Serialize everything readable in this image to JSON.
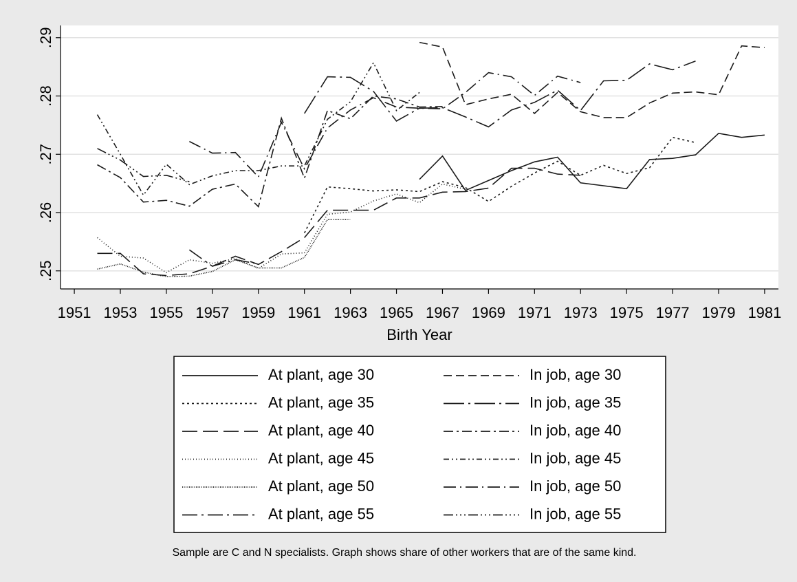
{
  "chart_data": {
    "type": "line",
    "x_label": "Birth Year",
    "note": "Sample are C and N specialists. Graph shows share of other workers that are of the same kind.",
    "x": [
      1952,
      1953,
      1954,
      1955,
      1956,
      1957,
      1958,
      1959,
      1960,
      1961,
      1962,
      1963,
      1964,
      1965,
      1966,
      1967,
      1968,
      1969,
      1970,
      1971,
      1972,
      1973,
      1974,
      1975,
      1976,
      1977,
      1978,
      1979,
      1980,
      1981
    ],
    "xlim": [
      1950.4,
      1981.6
    ],
    "xticks": [
      1951,
      1953,
      1955,
      1957,
      1959,
      1961,
      1963,
      1965,
      1967,
      1969,
      1971,
      1973,
      1975,
      1977,
      1979,
      1981
    ],
    "ylim": [
      0.2469,
      0.2921
    ],
    "yticks": [
      {
        "value": 0.25,
        "label": ".25"
      },
      {
        "value": 0.26,
        "label": ".26"
      },
      {
        "value": 0.27,
        "label": ".27"
      },
      {
        "value": 0.28,
        "label": ".28"
      },
      {
        "value": 0.29,
        "label": ".29"
      }
    ],
    "grid": true,
    "series": [
      {
        "name": "At plant, age 30",
        "color": "#1a1a1a",
        "dash": "none",
        "values": [
          null,
          null,
          null,
          null,
          null,
          null,
          null,
          null,
          null,
          null,
          null,
          null,
          null,
          null,
          0.2657,
          0.2697,
          0.2638,
          0.2655,
          0.2672,
          0.2687,
          0.2695,
          0.2651,
          0.2646,
          0.2641,
          0.2691,
          0.2693,
          0.2699,
          0.2736,
          0.2729,
          0.2733
        ]
      },
      {
        "name": "At plant, age 35",
        "color": "#1a1a1a",
        "dash": "3,4",
        "values": [
          null,
          null,
          null,
          null,
          null,
          null,
          null,
          null,
          null,
          0.2565,
          0.2644,
          0.2641,
          0.2637,
          0.2639,
          0.2636,
          0.2653,
          0.2643,
          0.2619,
          0.2645,
          0.2668,
          0.2688,
          0.2664,
          0.2681,
          0.2667,
          0.2677,
          0.2729,
          0.272,
          null,
          null,
          null
        ]
      },
      {
        "name": "At plant, age 40",
        "color": "#1a1a1a",
        "dash": "22,8",
        "values": [
          0.253,
          0.253,
          0.2495,
          0.2492,
          0.2495,
          0.2508,
          0.2525,
          0.2511,
          0.2533,
          0.2557,
          0.2604,
          0.2604,
          0.2604,
          0.2625,
          0.2625,
          0.2635,
          0.2636,
          0.2642,
          0.2676,
          0.2676,
          0.2666,
          0.2664,
          null,
          null,
          null,
          null,
          null,
          null,
          null,
          null
        ]
      },
      {
        "name": "At plant, age 45",
        "color": "#1a1a1a",
        "dash": "1,3",
        "values": [
          0.2557,
          0.2525,
          0.2522,
          0.2497,
          0.2519,
          0.2513,
          0.2521,
          0.2504,
          0.2529,
          0.2531,
          0.2597,
          0.2601,
          0.262,
          0.2632,
          0.2617,
          0.2649,
          0.264,
          null,
          null,
          null,
          null,
          null,
          null,
          null,
          null,
          null,
          null,
          null,
          null,
          null
        ]
      },
      {
        "name": "At plant, age 50",
        "color": "#1a1a1a",
        "dash": "1,1.5",
        "values": [
          0.2503,
          0.2512,
          0.2498,
          0.249,
          0.2491,
          0.2499,
          0.2519,
          0.2505,
          0.2505,
          0.2523,
          0.2588,
          0.2588,
          null,
          null,
          null,
          null,
          null,
          null,
          null,
          null,
          null,
          null,
          null,
          null,
          null,
          null,
          null,
          null,
          null,
          null
        ]
      },
      {
        "name": "At plant, age 55",
        "color": "#1a1a1a",
        "dash": "22,6,3,6",
        "values": [
          null,
          null,
          null,
          null,
          0.2536,
          0.2508,
          0.2519,
          0.2512,
          null,
          null,
          null,
          null,
          null,
          null,
          null,
          null,
          null,
          null,
          null,
          null,
          null,
          null,
          null,
          null,
          null,
          null,
          null,
          null,
          null,
          null
        ]
      },
      {
        "name": "In job, age 30",
        "color": "#1a1a1a",
        "dash": "12,6",
        "values": [
          null,
          null,
          null,
          null,
          null,
          null,
          null,
          null,
          null,
          null,
          null,
          null,
          null,
          null,
          0.2892,
          0.2884,
          0.2785,
          0.2795,
          0.2803,
          0.277,
          0.2806,
          0.2773,
          0.2763,
          0.2763,
          0.2788,
          0.2805,
          0.2807,
          0.2802,
          0.2886,
          0.2883
        ]
      },
      {
        "name": "In job, age 35",
        "color": "#1a1a1a",
        "dash": "30,6,3,6",
        "values": [
          null,
          null,
          null,
          null,
          null,
          null,
          null,
          null,
          null,
          0.277,
          0.2833,
          0.2832,
          0.2808,
          0.2757,
          0.2779,
          0.278,
          0.2764,
          0.2747,
          0.2776,
          0.2789,
          0.281,
          0.2775,
          0.2826,
          0.2827,
          0.2855,
          0.2845,
          0.286,
          null,
          null,
          null
        ]
      },
      {
        "name": "In job, age 40",
        "color": "#1a1a1a",
        "dash": "14,5,3,5",
        "values": [
          0.2682,
          0.266,
          0.2618,
          0.2621,
          0.2611,
          0.264,
          0.2649,
          0.261,
          0.2762,
          0.2659,
          0.2775,
          0.2761,
          0.28,
          0.2795,
          0.2781,
          0.2782,
          null,
          null,
          null,
          null,
          null,
          null,
          null,
          null,
          null,
          null,
          null,
          null,
          null,
          null
        ]
      },
      {
        "name": "In job, age 45",
        "color": "#1a1a1a",
        "dash": "8,4,2,4,2,4",
        "values": [
          0.2768,
          0.27,
          0.263,
          0.2683,
          0.2648,
          0.2663,
          0.2672,
          0.2672,
          0.268,
          0.268,
          0.276,
          0.279,
          0.2857,
          0.2775,
          0.2806,
          null,
          null,
          null,
          null,
          null,
          null,
          null,
          null,
          null,
          null,
          null,
          null,
          null,
          null,
          null
        ]
      },
      {
        "name": "In job, age 50",
        "color": "#1a1a1a",
        "dash": "18,6,2,6",
        "values": [
          null,
          null,
          null,
          null,
          0.2722,
          0.2702,
          0.2703,
          0.2661,
          0.2755,
          0.2675,
          0.2745,
          0.2776,
          0.2797,
          0.2781,
          0.2779,
          0.2778,
          0.2806,
          0.284,
          0.2833,
          0.2801,
          0.2834,
          0.2823,
          null,
          null,
          null,
          null,
          null,
          null,
          null,
          null
        ]
      },
      {
        "name": "In job, age 55",
        "color": "#1a1a1a",
        "dash": "14,4,2,4,2,4,2,4",
        "values": [
          0.271,
          0.269,
          0.2662,
          0.2664,
          0.2653,
          null,
          null,
          null,
          null,
          null,
          null,
          null,
          null,
          null,
          null,
          null,
          null,
          null,
          null,
          null,
          null,
          null,
          null,
          null,
          null,
          null,
          null,
          null,
          null,
          null
        ]
      }
    ]
  }
}
